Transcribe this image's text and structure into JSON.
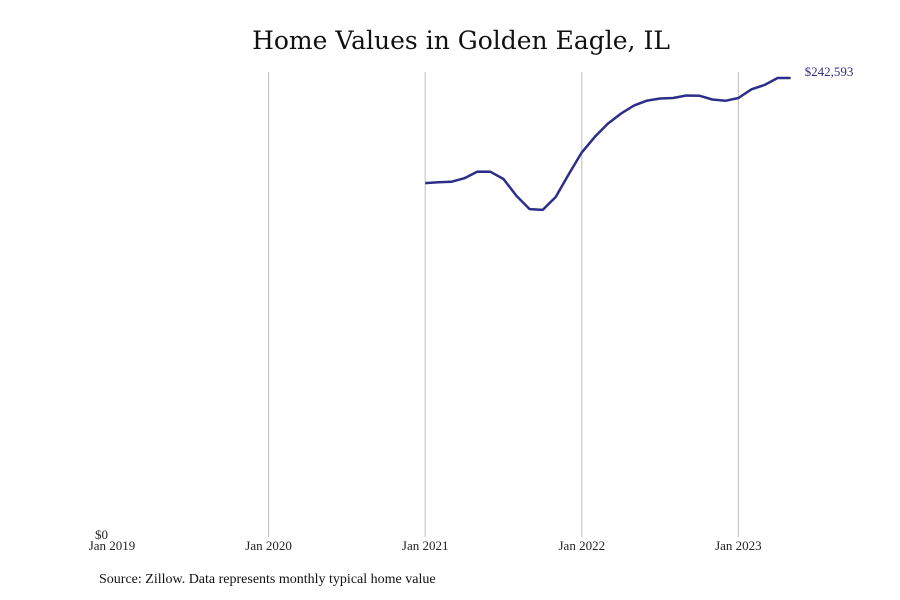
{
  "chart_data": {
    "type": "line",
    "title": "Home Values in Golden Eagle, IL",
    "xlabel": "",
    "ylabel": "",
    "x_ticks": [
      "Jan 2019",
      "Jan 2020",
      "Jan 2021",
      "Jan 2022",
      "Jan 2023"
    ],
    "y_tick_label": "$0",
    "ylim": [
      0,
      242593
    ],
    "xlim": [
      "2019-01",
      "2023-06"
    ],
    "grid": "vertical",
    "line_color": "#2e2e8a",
    "end_label": "$242,593",
    "series": [
      {
        "x": [
          "2021-01",
          "2021-02",
          "2021-03",
          "2021-04",
          "2021-05",
          "2021-06",
          "2021-07",
          "2021-08",
          "2021-09",
          "2021-10",
          "2021-11",
          "2021-12",
          "2022-01",
          "2022-02",
          "2022-03",
          "2022-04",
          "2022-05",
          "2022-06",
          "2022-07",
          "2022-08",
          "2022-09",
          "2022-10",
          "2022-11",
          "2022-12",
          "2023-01",
          "2023-02",
          "2023-03",
          "2023-04",
          "2023-05"
        ],
        "y": [
          186800,
          187300,
          187500,
          189400,
          192900,
          192800,
          189000,
          180000,
          173000,
          172600,
          179400,
          191600,
          203100,
          211400,
          218400,
          223700,
          228000,
          230600,
          231700,
          232000,
          233300,
          233200,
          231200,
          230500,
          232000,
          236600,
          238900,
          242593,
          242593
        ]
      }
    ]
  },
  "source_note": "Source: Zillow. Data represents monthly typical home value"
}
